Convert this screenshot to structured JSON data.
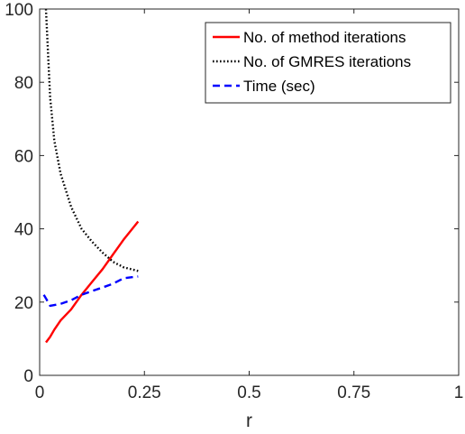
{
  "chart_data": {
    "type": "line",
    "title": "",
    "xlabel": "r",
    "ylabel": "",
    "xlim": [
      0,
      1
    ],
    "ylim": [
      0,
      100
    ],
    "xticks": [
      0,
      0.25,
      0.5,
      0.75,
      1
    ],
    "xtick_labels": [
      "0",
      "0.25",
      "0.5",
      "0.75",
      "1"
    ],
    "yticks": [
      0,
      20,
      40,
      60,
      80,
      100
    ],
    "ytick_labels": [
      "0",
      "20",
      "40",
      "60",
      "80",
      "100"
    ],
    "grid": false,
    "legend_position": "top-right",
    "series": [
      {
        "name": "No. of method iterations",
        "color": "#ff0000",
        "style": "solid",
        "x": [
          0.015,
          0.025,
          0.035,
          0.05,
          0.075,
          0.1,
          0.125,
          0.15,
          0.175,
          0.2,
          0.235
        ],
        "y": [
          9,
          10.5,
          12.5,
          15,
          18,
          22,
          25.5,
          29,
          33,
          37,
          42
        ]
      },
      {
        "name": "No. of GMRES iterations",
        "color": "#000000",
        "style": "dotted",
        "x": [
          0.015,
          0.025,
          0.035,
          0.05,
          0.075,
          0.1,
          0.125,
          0.15,
          0.175,
          0.2,
          0.235
        ],
        "y": [
          100,
          76,
          64,
          55,
          46,
          40,
          36.5,
          33.5,
          31,
          29.5,
          28.5
        ]
      },
      {
        "name": "Time (sec)",
        "color": "#0000ff",
        "style": "dashed",
        "x": [
          0.01,
          0.015,
          0.025,
          0.05,
          0.075,
          0.1,
          0.125,
          0.15,
          0.175,
          0.2,
          0.235
        ],
        "y": [
          22,
          21,
          19,
          19.5,
          20.5,
          22,
          23,
          24,
          25,
          26.5,
          27
        ]
      }
    ]
  }
}
